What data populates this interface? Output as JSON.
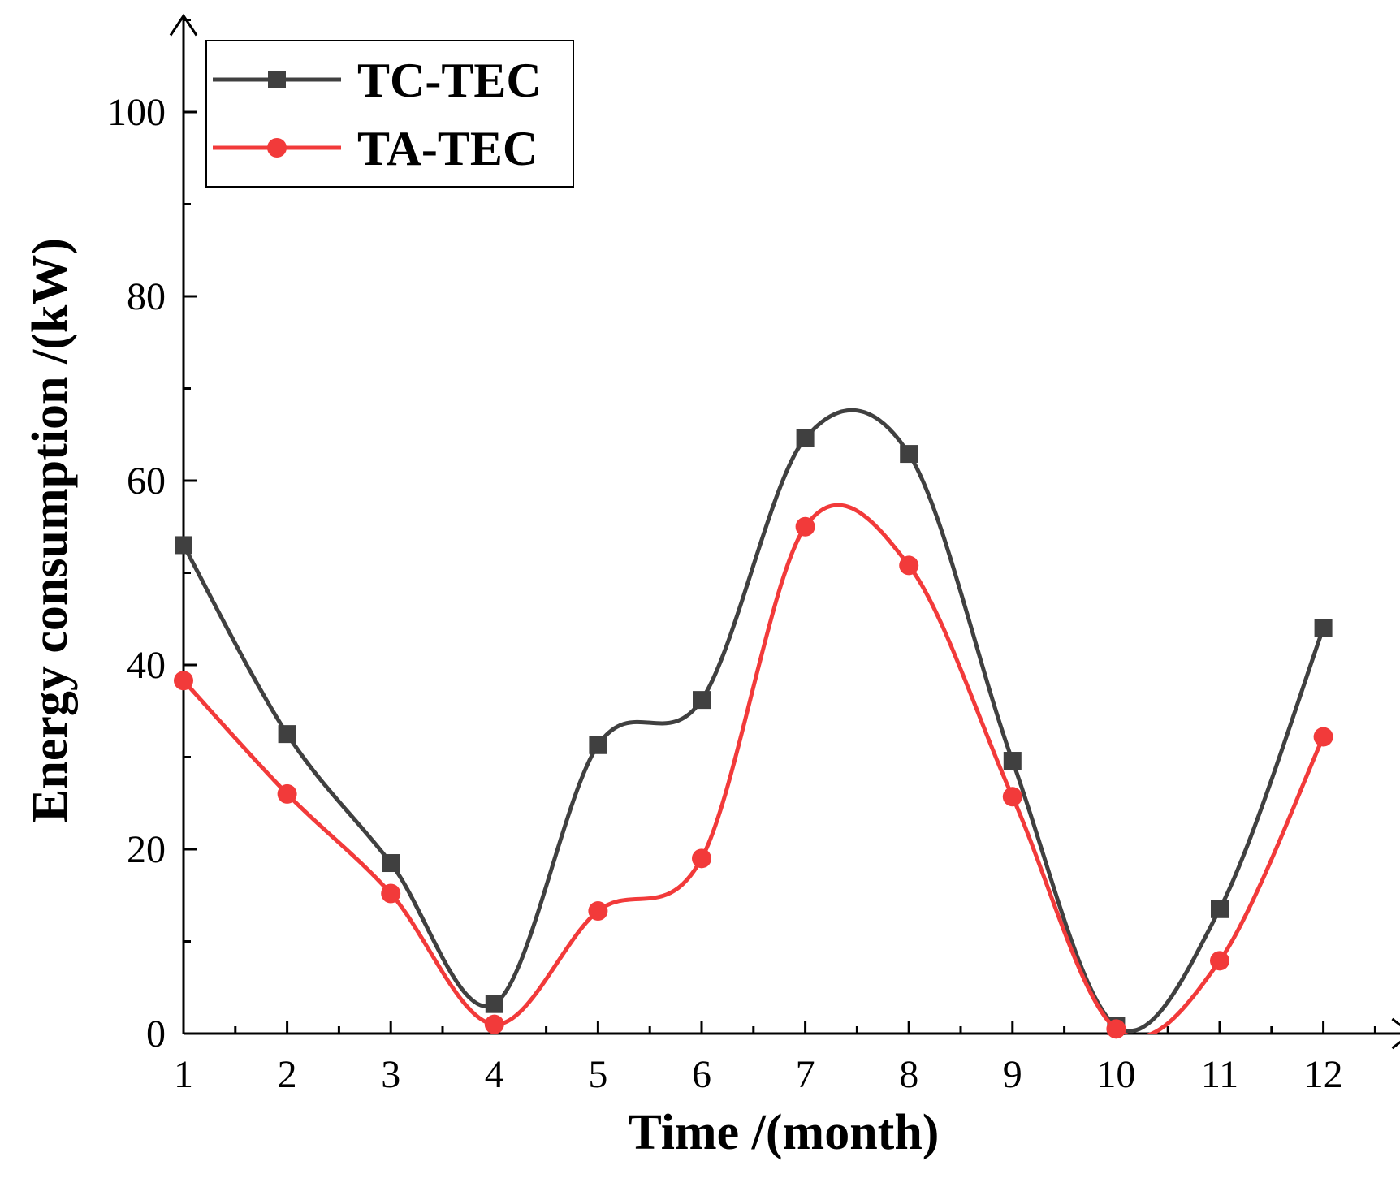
{
  "chart_data": {
    "type": "line",
    "title": "",
    "xlabel": "Time /(month)",
    "ylabel": "Energy consumption /(kW)",
    "x": [
      1,
      2,
      3,
      4,
      5,
      6,
      7,
      8,
      9,
      10,
      11,
      12
    ],
    "xticks": [
      "1",
      "2",
      "3",
      "4",
      "5",
      "6",
      "7",
      "8",
      "9",
      "10",
      "11",
      "12"
    ],
    "yticks": [
      "0",
      "20",
      "40",
      "60",
      "80",
      "100"
    ],
    "xlim": [
      1,
      12.5
    ],
    "ylim": [
      0,
      110
    ],
    "grid": false,
    "smooth": true,
    "legend_position": "top-left",
    "series": [
      {
        "name": "TC-TEC",
        "marker": "square",
        "color": "#404040",
        "values": [
          53,
          32.5,
          18.5,
          3.2,
          31.3,
          36.2,
          64.6,
          62.9,
          29.6,
          0.8,
          13.5,
          44
        ]
      },
      {
        "name": "TA-TEC",
        "marker": "circle",
        "color": "#f23a3a",
        "values": [
          38.3,
          26,
          15.2,
          1,
          13.3,
          19,
          55,
          50.8,
          25.7,
          0.5,
          7.9,
          32.2
        ]
      }
    ]
  }
}
